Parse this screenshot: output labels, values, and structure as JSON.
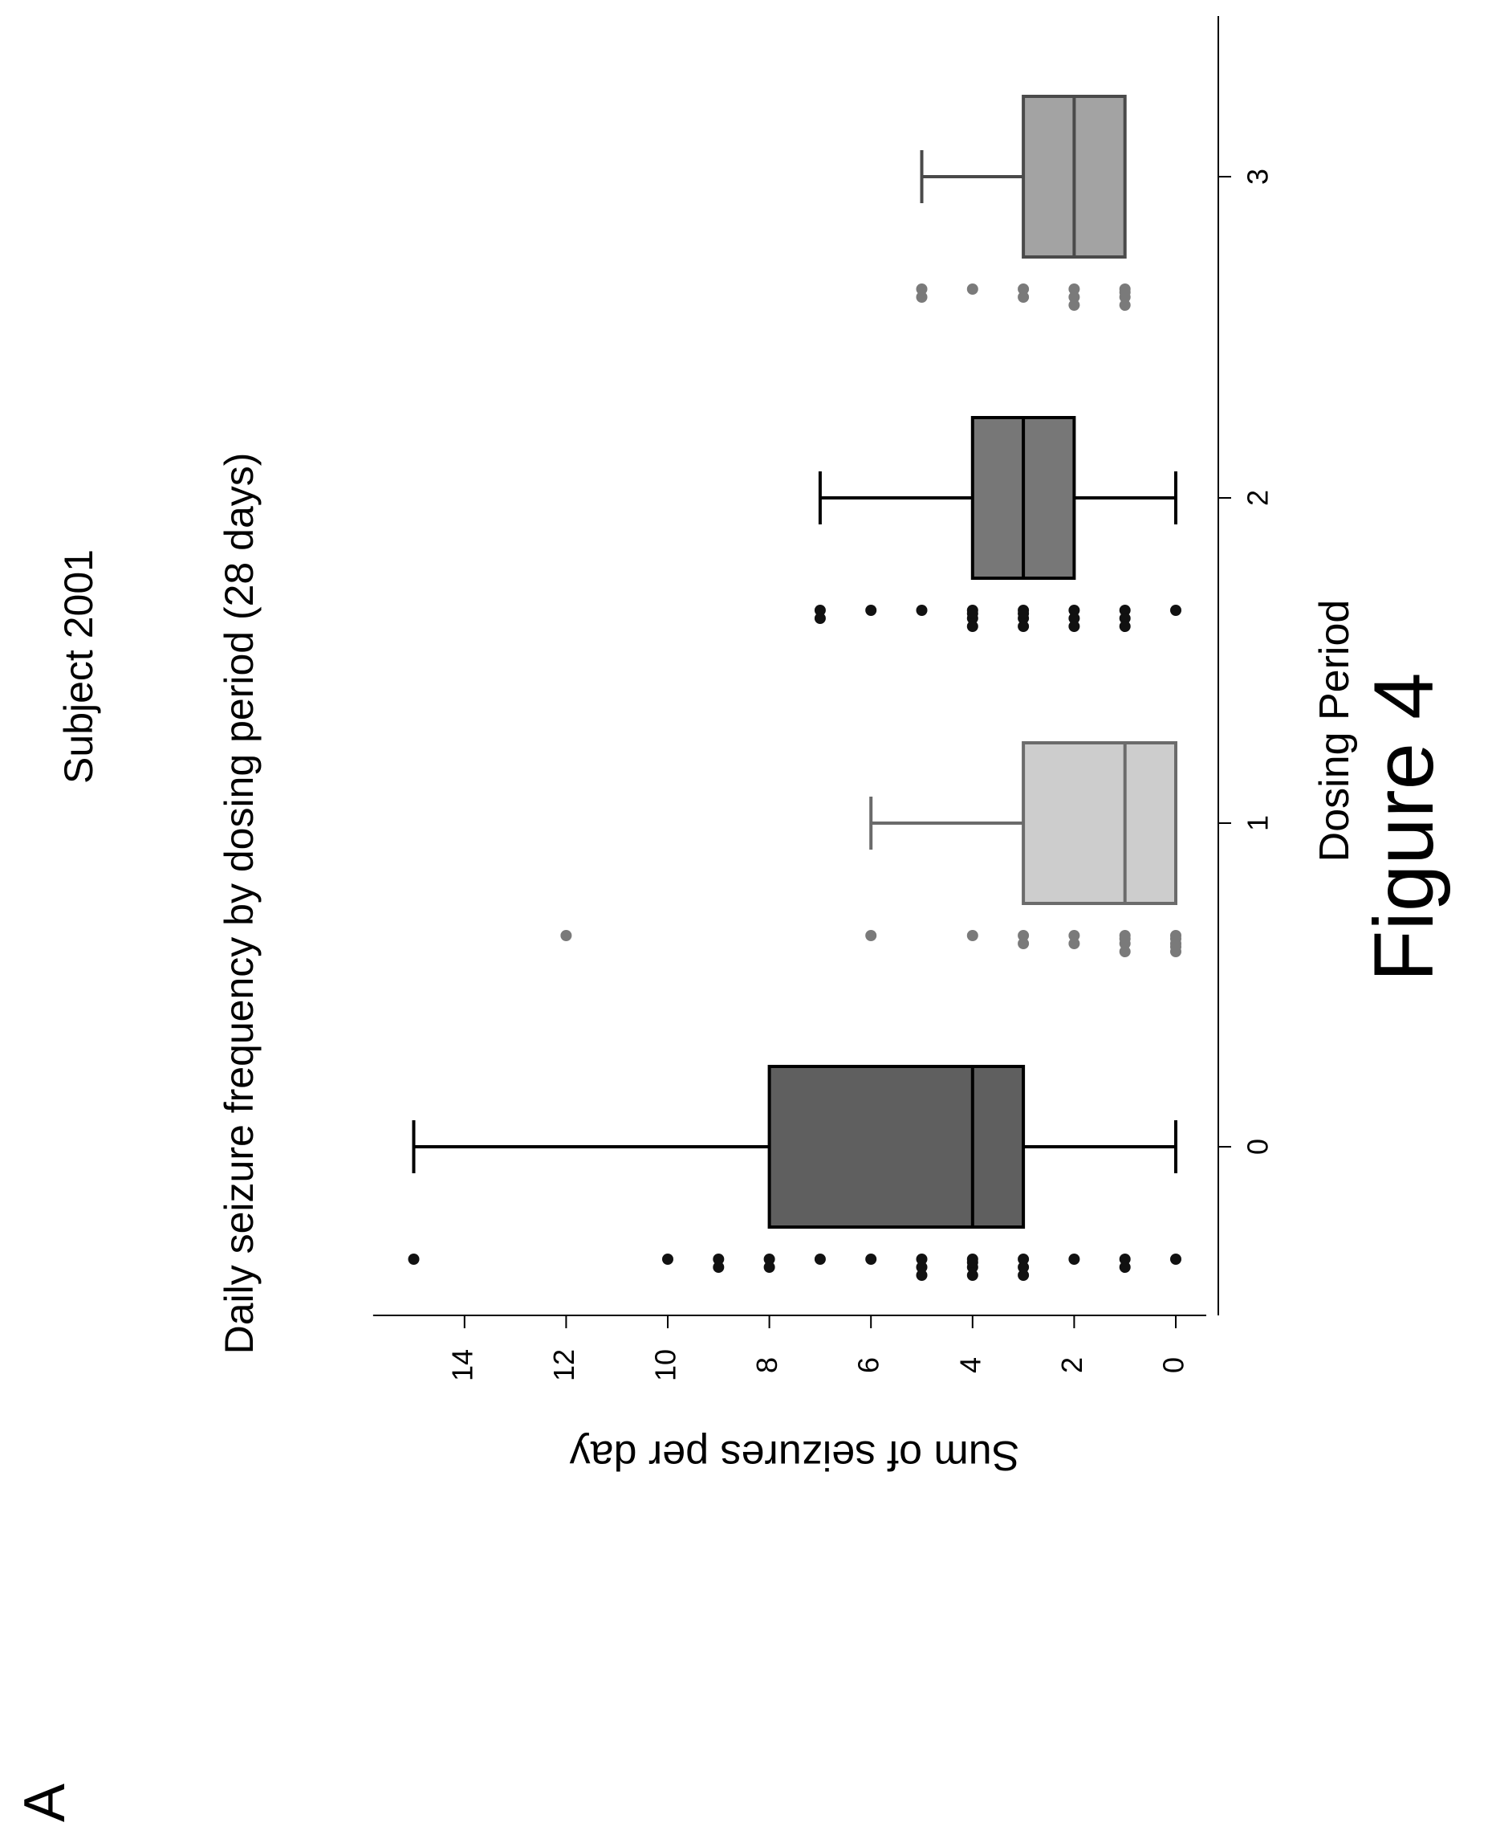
{
  "panel_label": "A",
  "figure_label": "Figure 4",
  "colors": {
    "period_0": "#5f5f5f",
    "period_1": "#cdcdcd",
    "period_2": "#777777",
    "period_3": "#a3a3a3",
    "points_dark": "#111111",
    "points_grey": "#7a7a7a"
  },
  "chart_data": {
    "type": "box",
    "orientation": "rotated-90-ccw",
    "title": "Subject 2001",
    "subtitle": "Daily seizure frequency by dosing period (28 days)",
    "xlabel": "Dosing Period",
    "ylabel": "Sum of seizures per day",
    "categories": [
      "0",
      "1",
      "2",
      "3"
    ],
    "x_ticks": [
      "0",
      "1",
      "2",
      "3"
    ],
    "y_ticks": [
      "0",
      "2",
      "4",
      "6",
      "8",
      "10",
      "12",
      "14"
    ],
    "ylim": [
      -0.6,
      15.8
    ],
    "boxes": [
      {
        "period": "0",
        "whisker_low": 0,
        "q1": 3,
        "median": 4,
        "q3": 8,
        "whisker_high": 15
      },
      {
        "period": "1",
        "whisker_low": 0,
        "q1": 0,
        "median": 1,
        "q3": 3,
        "whisker_high": 6
      },
      {
        "period": "2",
        "whisker_low": 0,
        "q1": 2,
        "median": 3,
        "q3": 4,
        "whisker_high": 7
      },
      {
        "period": "3",
        "whisker_low": 1,
        "q1": 1,
        "median": 2,
        "q3": 3,
        "whisker_high": 5
      }
    ],
    "daily_counts": [
      {
        "period": "0",
        "values": [
          0,
          1,
          1,
          2,
          3,
          3,
          3,
          4,
          4,
          4,
          4,
          5,
          5,
          5,
          6,
          7,
          8,
          8,
          9,
          9,
          10,
          15
        ]
      },
      {
        "period": "1",
        "values": [
          0,
          0,
          0,
          0,
          0,
          1,
          1,
          1,
          1,
          2,
          2,
          3,
          3,
          4,
          6,
          12
        ]
      },
      {
        "period": "2",
        "values": [
          0,
          1,
          1,
          1,
          2,
          2,
          2,
          3,
          3,
          3,
          3,
          4,
          4,
          4,
          4,
          5,
          6,
          7,
          7
        ]
      },
      {
        "period": "3",
        "values": [
          1,
          1,
          1,
          1,
          2,
          2,
          2,
          3,
          3,
          4,
          5,
          5
        ]
      }
    ]
  }
}
